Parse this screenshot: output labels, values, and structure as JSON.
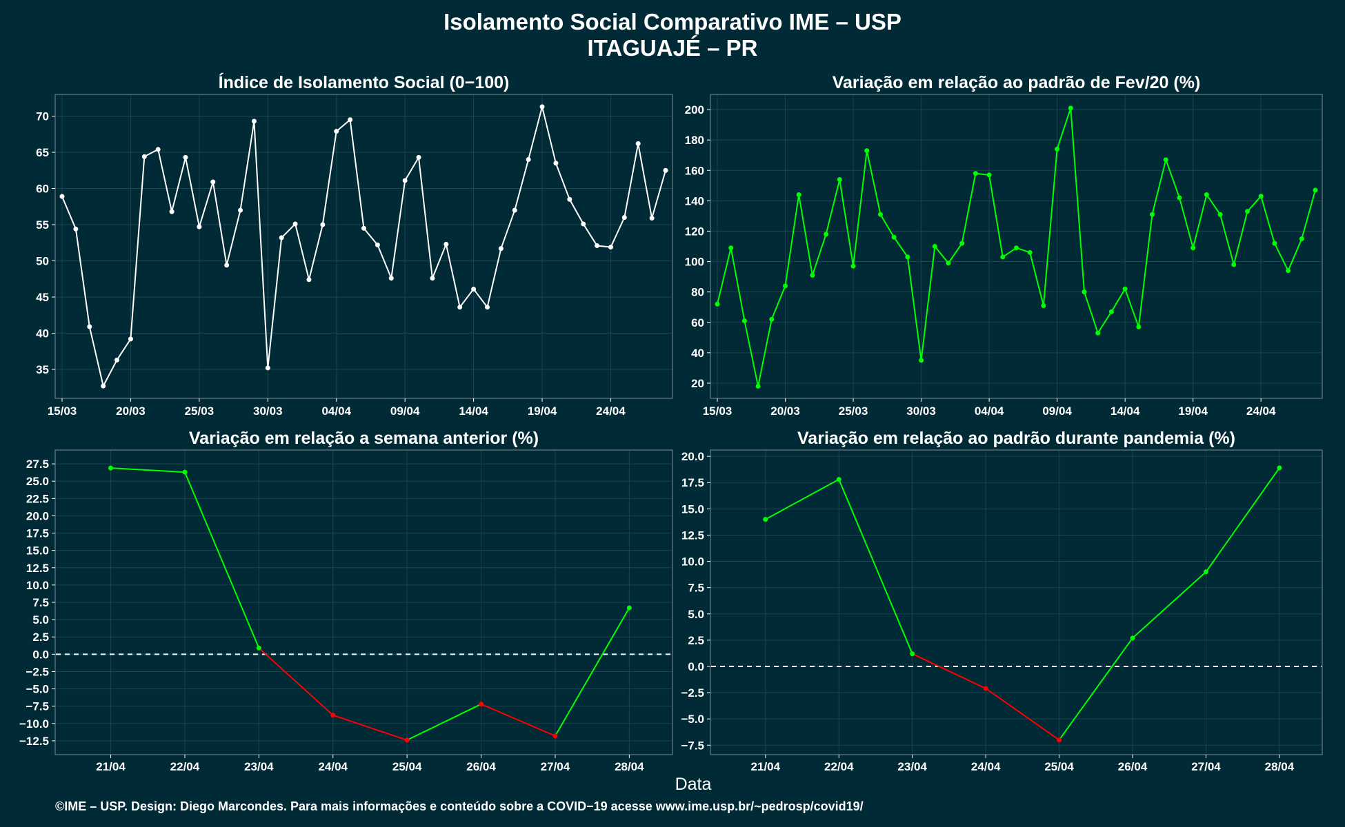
{
  "page": {
    "title_line1": "Isolamento Social Comparativo IME – USP",
    "title_line2": "ITAGUAJÉ – PR",
    "xaxis_title": "Data",
    "footer": "©IME – USP. Design: Diego Marcondes. Para mais informações e conteúdo sobre a COVID−19 acesse www.ime.usp.br/~pedrosp/covid19/"
  },
  "colors": {
    "background": "#002a35",
    "panel": "#002a35",
    "grid": "#1d4450",
    "white_series": "#ffffff",
    "green_series": "#00ff00",
    "red_series": "#ff0000",
    "zero_line": "#ffffff"
  },
  "chart_data": [
    {
      "type": "line",
      "title": "Índice de Isolamento Social (0−100)",
      "series_color": "white",
      "x_start": "15/03",
      "x_tick_labels": [
        "15/03",
        "20/03",
        "25/03",
        "30/03",
        "04/04",
        "09/04",
        "14/04",
        "19/04",
        "24/04"
      ],
      "ylim": [
        31,
        73
      ],
      "yticks": [
        "35",
        "40",
        "45",
        "50",
        "55",
        "60",
        "65",
        "70"
      ],
      "values": [
        58.9,
        54.4,
        40.9,
        32.7,
        36.3,
        39.2,
        64.4,
        65.4,
        56.8,
        64.3,
        54.7,
        60.9,
        49.4,
        57.0,
        69.3,
        35.2,
        53.2,
        55.1,
        47.4,
        55.0,
        67.9,
        69.5,
        54.5,
        52.2,
        47.6,
        61.1,
        64.3,
        47.6,
        52.3,
        43.6,
        46.1,
        43.6,
        51.7,
        57.0,
        64.0,
        71.3,
        63.5,
        58.5,
        55.1,
        52.1,
        51.9,
        56.0,
        66.2,
        55.9,
        62.5
      ]
    },
    {
      "type": "line",
      "title": "Variação em relação ao padrão de Fev/20 (%)",
      "series_color": "green",
      "x_start": "15/03",
      "x_tick_labels": [
        "15/03",
        "20/03",
        "25/03",
        "30/03",
        "04/04",
        "09/04",
        "14/04",
        "19/04",
        "24/04"
      ],
      "ylim": [
        10,
        210
      ],
      "yticks": [
        "20",
        "40",
        "60",
        "80",
        "100",
        "120",
        "140",
        "160",
        "180",
        "200"
      ],
      "values": [
        72,
        109,
        61,
        18,
        62,
        84,
        144,
        91,
        118,
        154,
        97,
        173,
        131,
        116,
        103,
        35,
        110,
        99,
        112,
        158,
        157,
        103,
        109,
        106,
        71,
        174,
        201,
        80,
        53,
        67,
        82,
        57,
        131,
        167,
        142,
        109,
        144,
        131,
        98,
        133,
        143,
        112,
        94,
        115,
        147
      ]
    },
    {
      "type": "line",
      "title": "Variação em relação a semana anterior (%)",
      "series_color": "green-red",
      "categories": [
        "21/04",
        "22/04",
        "23/04",
        "24/04",
        "25/04",
        "26/04",
        "27/04",
        "28/04"
      ],
      "ylim": [
        -14.5,
        29.5
      ],
      "yticks": [
        "−12.5",
        "−10.0",
        "−7.5",
        "−5.0",
        "−2.5",
        "0.0",
        "2.5",
        "5.0",
        "7.5",
        "10.0",
        "12.5",
        "15.0",
        "17.5",
        "20.0",
        "22.5",
        "25.0",
        "27.5"
      ],
      "values": [
        26.9,
        26.3,
        0.9,
        -8.8,
        -12.4,
        -7.2,
        -11.8,
        6.7
      ]
    },
    {
      "type": "line",
      "title": "Variação em relação ao padrão durante pandemia (%)",
      "series_color": "green-red",
      "categories": [
        "21/04",
        "22/04",
        "23/04",
        "24/04",
        "25/04",
        "26/04",
        "27/04",
        "28/04"
      ],
      "ylim": [
        -8.4,
        20.6
      ],
      "yticks": [
        "−7.5",
        "−5.0",
        "−2.5",
        "0.0",
        "2.5",
        "5.0",
        "7.5",
        "10.0",
        "12.5",
        "15.0",
        "17.5",
        "20.0"
      ],
      "values": [
        14.0,
        17.8,
        1.2,
        -2.1,
        -7.0,
        2.7,
        9.0,
        18.9
      ]
    }
  ]
}
